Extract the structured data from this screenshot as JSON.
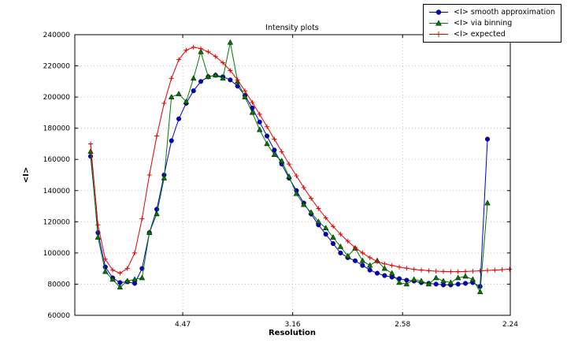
{
  "chart_data": {
    "type": "line",
    "title": "Intensity plots",
    "xlabel": "Resolution",
    "ylabel": "<I>",
    "grid": "dotted",
    "legend_position": "upper-right-outside",
    "x_axis": {
      "range": [
        0.0008,
        0.1993
      ],
      "ticks": [
        {
          "value": 0.05,
          "label": "4.47"
        },
        {
          "value": 0.1001,
          "label": "3.16"
        },
        {
          "value": 0.1502,
          "label": "2.58"
        },
        {
          "value": 0.1993,
          "label": "2.24"
        }
      ]
    },
    "y_axis": {
      "range": [
        60000,
        240000
      ],
      "ticks": [
        {
          "value": 60000,
          "label": "60000"
        },
        {
          "value": 80000,
          "label": "80000"
        },
        {
          "value": 100000,
          "label": "100000"
        },
        {
          "value": 120000,
          "label": "120000"
        },
        {
          "value": 140000,
          "label": "140000"
        },
        {
          "value": 160000,
          "label": "160000"
        },
        {
          "value": 180000,
          "label": "180000"
        },
        {
          "value": 200000,
          "label": "200000"
        },
        {
          "value": 220000,
          "label": "220000"
        },
        {
          "value": 240000,
          "label": "240000"
        }
      ]
    },
    "x_start": 0.008,
    "x_step": 0.00335,
    "series": [
      {
        "name": "<I> smooth approximation",
        "color": "#0000cd",
        "marker": "circle",
        "values": [
          162000,
          113000,
          91000,
          84000,
          81000,
          81500,
          80500,
          90000,
          113000,
          128000,
          150000,
          172000,
          186000,
          196000,
          204000,
          210000,
          213000,
          214000,
          213000,
          211000,
          207000,
          201000,
          193000,
          184000,
          175000,
          166000,
          157000,
          148000,
          140000,
          132000,
          125000,
          118000,
          112000,
          106000,
          100000,
          97000,
          95000,
          92000,
          89000,
          87000,
          85500,
          84500,
          83500,
          82500,
          82000,
          81000,
          80500,
          80000,
          79500,
          79500,
          80000,
          80500,
          81000,
          78500,
          173000
        ]
      },
      {
        "name": "<I> via binning",
        "color": "#007a00",
        "marker": "triangle-up",
        "values": [
          165000,
          110000,
          88000,
          83000,
          78000,
          82000,
          83000,
          84000,
          113000,
          125000,
          148000,
          200000,
          202000,
          197000,
          212000,
          229000,
          213000,
          214000,
          212000,
          235000,
          210000,
          200000,
          190000,
          179000,
          170000,
          163000,
          159000,
          149000,
          138000,
          131000,
          126000,
          120000,
          116000,
          110000,
          104000,
          98000,
          103000,
          95000,
          92000,
          95000,
          90000,
          87000,
          81000,
          80000,
          83000,
          82000,
          80000,
          84000,
          82000,
          81000,
          84000,
          85000,
          83000,
          75000,
          132000
        ]
      },
      {
        "name": "<I> expected",
        "color": "#e10000",
        "marker": "plus",
        "values": [
          170000,
          118000,
          96000,
          89000,
          87000,
          90000,
          100000,
          122000,
          150000,
          175000,
          196000,
          212000,
          224000,
          230000,
          232000,
          231000,
          229000,
          226000,
          222000,
          217000,
          211000,
          204000,
          196500,
          189000,
          181000,
          173000,
          165000,
          157000,
          149500,
          142000,
          135000,
          128500,
          122500,
          117000,
          112000,
          107500,
          103500,
          100000,
          97000,
          94500,
          93000,
          92000,
          91000,
          90200,
          89500,
          89000,
          88600,
          88300,
          88100,
          88000,
          88000,
          88100,
          88300,
          88500,
          88800,
          89000,
          89300,
          89600
        ]
      }
    ]
  }
}
